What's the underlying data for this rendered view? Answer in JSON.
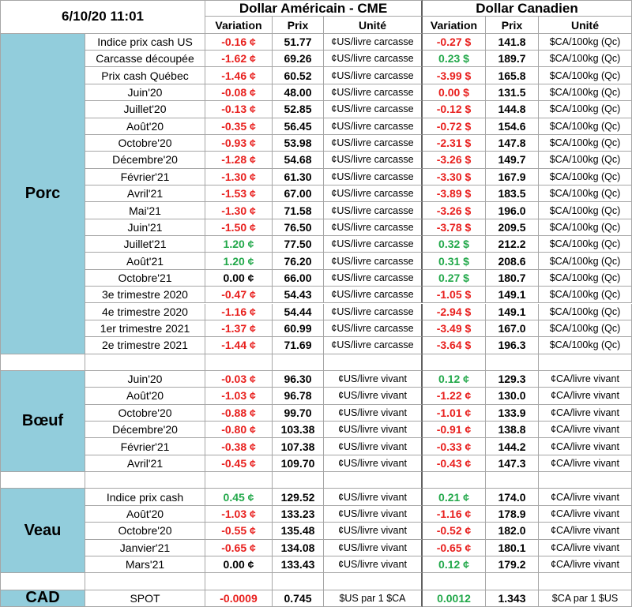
{
  "header": {
    "timestamp": "6/10/20 11:01",
    "us_title": "Dollar Américain - CME",
    "ca_title": "Dollar Canadien",
    "us_columns": [
      "Variation",
      "Prix",
      "Unité"
    ],
    "ca_columns": [
      "Variation",
      "Prix",
      "Unité"
    ]
  },
  "sections": [
    {
      "name": "Porc",
      "rows": [
        {
          "label": "Indice prix cash US",
          "us": {
            "variation": {
              "text": "-0.16 ¢",
              "color": "#e8201e"
            },
            "prix": "51.77",
            "unite": "¢US/livre carcasse"
          },
          "ca": {
            "variation": {
              "text": "-0.27 $",
              "color": "#e8201e"
            },
            "prix": "141.8",
            "unite": "$CA/100kg (Qc)"
          }
        },
        {
          "label": "Carcasse découpée",
          "us": {
            "variation": {
              "text": "-1.62 ¢",
              "color": "#e8201e"
            },
            "prix": "69.26",
            "unite": "¢US/livre carcasse"
          },
          "ca": {
            "variation": {
              "text": "0.23 $",
              "color": "#22a84a"
            },
            "prix": "189.7",
            "unite": "$CA/100kg (Qc)"
          }
        },
        {
          "label": "Prix cash Québec",
          "us": {
            "variation": {
              "text": "-1.46 ¢",
              "color": "#e8201e"
            },
            "prix": "60.52",
            "unite": "¢US/livre carcasse"
          },
          "ca": {
            "variation": {
              "text": "-3.99 $",
              "color": "#e8201e"
            },
            "prix": "165.8",
            "unite": "$CA/100kg (Qc)"
          }
        },
        {
          "label": "Juin'20",
          "us": {
            "variation": {
              "text": "-0.08 ¢",
              "color": "#e8201e"
            },
            "prix": "48.00",
            "unite": "¢US/livre carcasse"
          },
          "ca": {
            "variation": {
              "text": "0.00 $",
              "color": "#e8201e"
            },
            "prix": "131.5",
            "unite": "$CA/100kg (Qc)"
          }
        },
        {
          "label": "Juillet'20",
          "us": {
            "variation": {
              "text": "-0.13 ¢",
              "color": "#e8201e"
            },
            "prix": "52.85",
            "unite": "¢US/livre carcasse"
          },
          "ca": {
            "variation": {
              "text": "-0.12 $",
              "color": "#e8201e"
            },
            "prix": "144.8",
            "unite": "$CA/100kg (Qc)"
          }
        },
        {
          "label": "Août'20",
          "us": {
            "variation": {
              "text": "-0.35 ¢",
              "color": "#e8201e"
            },
            "prix": "56.45",
            "unite": "¢US/livre carcasse"
          },
          "ca": {
            "variation": {
              "text": "-0.72 $",
              "color": "#e8201e"
            },
            "prix": "154.6",
            "unite": "$CA/100kg (Qc)"
          }
        },
        {
          "label": "Octobre'20",
          "us": {
            "variation": {
              "text": "-0.93 ¢",
              "color": "#e8201e"
            },
            "prix": "53.98",
            "unite": "¢US/livre carcasse"
          },
          "ca": {
            "variation": {
              "text": "-2.31 $",
              "color": "#e8201e"
            },
            "prix": "147.8",
            "unite": "$CA/100kg (Qc)"
          }
        },
        {
          "label": "Décembre'20",
          "us": {
            "variation": {
              "text": "-1.28 ¢",
              "color": "#e8201e"
            },
            "prix": "54.68",
            "unite": "¢US/livre carcasse"
          },
          "ca": {
            "variation": {
              "text": "-3.26 $",
              "color": "#e8201e"
            },
            "prix": "149.7",
            "unite": "$CA/100kg (Qc)"
          }
        },
        {
          "label": "Février'21",
          "us": {
            "variation": {
              "text": "-1.30 ¢",
              "color": "#e8201e"
            },
            "prix": "61.30",
            "unite": "¢US/livre carcasse"
          },
          "ca": {
            "variation": {
              "text": "-3.30 $",
              "color": "#e8201e"
            },
            "prix": "167.9",
            "unite": "$CA/100kg (Qc)"
          }
        },
        {
          "label": "Avril'21",
          "us": {
            "variation": {
              "text": "-1.53 ¢",
              "color": "#e8201e"
            },
            "prix": "67.00",
            "unite": "¢US/livre carcasse"
          },
          "ca": {
            "variation": {
              "text": "-3.89 $",
              "color": "#e8201e"
            },
            "prix": "183.5",
            "unite": "$CA/100kg (Qc)"
          }
        },
        {
          "label": "Mai'21",
          "us": {
            "variation": {
              "text": "-1.30 ¢",
              "color": "#e8201e"
            },
            "prix": "71.58",
            "unite": "¢US/livre carcasse"
          },
          "ca": {
            "variation": {
              "text": "-3.26 $",
              "color": "#e8201e"
            },
            "prix": "196.0",
            "unite": "$CA/100kg (Qc)"
          }
        },
        {
          "label": "Juin'21",
          "us": {
            "variation": {
              "text": "-1.50 ¢",
              "color": "#e8201e"
            },
            "prix": "76.50",
            "unite": "¢US/livre carcasse"
          },
          "ca": {
            "variation": {
              "text": "-3.78 $",
              "color": "#e8201e"
            },
            "prix": "209.5",
            "unite": "$CA/100kg (Qc)"
          }
        },
        {
          "label": "Juillet'21",
          "us": {
            "variation": {
              "text": "1.20 ¢",
              "color": "#22a84a"
            },
            "prix": "77.50",
            "unite": "¢US/livre carcasse"
          },
          "ca": {
            "variation": {
              "text": "0.32 $",
              "color": "#22a84a"
            },
            "prix": "212.2",
            "unite": "$CA/100kg (Qc)"
          }
        },
        {
          "label": "Août'21",
          "us": {
            "variation": {
              "text": "1.20 ¢",
              "color": "#22a84a"
            },
            "prix": "76.20",
            "unite": "¢US/livre carcasse"
          },
          "ca": {
            "variation": {
              "text": "0.31 $",
              "color": "#22a84a"
            },
            "prix": "208.6",
            "unite": "$CA/100kg (Qc)"
          }
        },
        {
          "label": "Octobre'21",
          "us": {
            "variation": {
              "text": "0.00 ¢",
              "color": "#000000"
            },
            "prix": "66.00",
            "unite": "¢US/livre carcasse"
          },
          "ca": {
            "variation": {
              "text": "0.27 $",
              "color": "#22a84a"
            },
            "prix": "180.7",
            "unite": "$CA/100kg (Qc)"
          }
        },
        {
          "label": "3e trimestre 2020",
          "us": {
            "variation": {
              "text": "-0.47 ¢",
              "color": "#e8201e"
            },
            "prix": "54.43",
            "unite": "¢US/livre carcasse"
          },
          "ca": {
            "variation": {
              "text": "-1.05 $",
              "color": "#e8201e"
            },
            "prix": "149.1",
            "unite": "$CA/100kg (Qc)"
          }
        },
        {
          "label": "4e trimestre 2020",
          "us": {
            "variation": {
              "text": "-1.16 ¢",
              "color": "#e8201e"
            },
            "prix": "54.44",
            "unite": "¢US/livre carcasse"
          },
          "ca": {
            "variation": {
              "text": "-2.94 $",
              "color": "#e8201e"
            },
            "prix": "149.1",
            "unite": "$CA/100kg (Qc)"
          }
        },
        {
          "label": "1er trimestre 2021",
          "us": {
            "variation": {
              "text": "-1.37 ¢",
              "color": "#e8201e"
            },
            "prix": "60.99",
            "unite": "¢US/livre carcasse"
          },
          "ca": {
            "variation": {
              "text": "-3.49 $",
              "color": "#e8201e"
            },
            "prix": "167.0",
            "unite": "$CA/100kg (Qc)"
          }
        },
        {
          "label": "2e trimestre 2021",
          "us": {
            "variation": {
              "text": "-1.44 ¢",
              "color": "#e8201e"
            },
            "prix": "71.69",
            "unite": "¢US/livre carcasse"
          },
          "ca": {
            "variation": {
              "text": "-3.64 $",
              "color": "#e8201e"
            },
            "prix": "196.3",
            "unite": "$CA/100kg (Qc)"
          }
        }
      ]
    },
    {
      "name": "Bœuf",
      "rows": [
        {
          "label": "Juin'20",
          "us": {
            "variation": {
              "text": "-0.03 ¢",
              "color": "#e8201e"
            },
            "prix": "96.30",
            "unite": "¢US/livre vivant"
          },
          "ca": {
            "variation": {
              "text": "0.12 ¢",
              "color": "#22a84a"
            },
            "prix": "129.3",
            "unite": "¢CA/livre vivant"
          }
        },
        {
          "label": "Août'20",
          "us": {
            "variation": {
              "text": "-1.03 ¢",
              "color": "#e8201e"
            },
            "prix": "96.78",
            "unite": "¢US/livre vivant"
          },
          "ca": {
            "variation": {
              "text": "-1.22 ¢",
              "color": "#e8201e"
            },
            "prix": "130.0",
            "unite": "¢CA/livre vivant"
          }
        },
        {
          "label": "Octobre'20",
          "us": {
            "variation": {
              "text": "-0.88 ¢",
              "color": "#e8201e"
            },
            "prix": "99.70",
            "unite": "¢US/livre vivant"
          },
          "ca": {
            "variation": {
              "text": "-1.01 ¢",
              "color": "#e8201e"
            },
            "prix": "133.9",
            "unite": "¢CA/livre vivant"
          }
        },
        {
          "label": "Décembre'20",
          "us": {
            "variation": {
              "text": "-0.80 ¢",
              "color": "#e8201e"
            },
            "prix": "103.38",
            "unite": "¢US/livre vivant"
          },
          "ca": {
            "variation": {
              "text": "-0.91 ¢",
              "color": "#e8201e"
            },
            "prix": "138.8",
            "unite": "¢CA/livre vivant"
          }
        },
        {
          "label": "Février'21",
          "us": {
            "variation": {
              "text": "-0.38 ¢",
              "color": "#e8201e"
            },
            "prix": "107.38",
            "unite": "¢US/livre vivant"
          },
          "ca": {
            "variation": {
              "text": "-0.33 ¢",
              "color": "#e8201e"
            },
            "prix": "144.2",
            "unite": "¢CA/livre vivant"
          }
        },
        {
          "label": "Avril'21",
          "us": {
            "variation": {
              "text": "-0.45 ¢",
              "color": "#e8201e"
            },
            "prix": "109.70",
            "unite": "¢US/livre vivant"
          },
          "ca": {
            "variation": {
              "text": "-0.43 ¢",
              "color": "#e8201e"
            },
            "prix": "147.3",
            "unite": "¢CA/livre vivant"
          }
        }
      ]
    },
    {
      "name": "Veau",
      "rows": [
        {
          "label": "Indice prix cash",
          "us": {
            "variation": {
              "text": "0.45 ¢",
              "color": "#22a84a"
            },
            "prix": "129.52",
            "unite": "¢US/livre vivant"
          },
          "ca": {
            "variation": {
              "text": "0.21 ¢",
              "color": "#22a84a"
            },
            "prix": "174.0",
            "unite": "¢CA/livre vivant"
          }
        },
        {
          "label": "Août'20",
          "us": {
            "variation": {
              "text": "-1.03 ¢",
              "color": "#e8201e"
            },
            "prix": "133.23",
            "unite": "¢US/livre vivant"
          },
          "ca": {
            "variation": {
              "text": "-1.16 ¢",
              "color": "#e8201e"
            },
            "prix": "178.9",
            "unite": "¢CA/livre vivant"
          }
        },
        {
          "label": "Octobre'20",
          "us": {
            "variation": {
              "text": "-0.55 ¢",
              "color": "#e8201e"
            },
            "prix": "135.48",
            "unite": "¢US/livre vivant"
          },
          "ca": {
            "variation": {
              "text": "-0.52 ¢",
              "color": "#e8201e"
            },
            "prix": "182.0",
            "unite": "¢CA/livre vivant"
          }
        },
        {
          "label": "Janvier'21",
          "us": {
            "variation": {
              "text": "-0.65 ¢",
              "color": "#e8201e"
            },
            "prix": "134.08",
            "unite": "¢US/livre vivant"
          },
          "ca": {
            "variation": {
              "text": "-0.65 ¢",
              "color": "#e8201e"
            },
            "prix": "180.1",
            "unite": "¢CA/livre vivant"
          }
        },
        {
          "label": "Mars'21",
          "us": {
            "variation": {
              "text": "0.00 ¢",
              "color": "#000000"
            },
            "prix": "133.43",
            "unite": "¢US/livre vivant"
          },
          "ca": {
            "variation": {
              "text": "0.12 ¢",
              "color": "#22a84a"
            },
            "prix": "179.2",
            "unite": "¢CA/livre vivant"
          }
        }
      ]
    },
    {
      "name": "CAD",
      "rows": [
        {
          "label": "SPOT",
          "us": {
            "variation": {
              "text": "-0.0009",
              "color": "#e8201e"
            },
            "prix": "0.745",
            "unite": "$US par 1 $CA"
          },
          "ca": {
            "variation": {
              "text": "0.0012",
              "color": "#22a84a"
            },
            "prix": "1.343",
            "unite": "$CA par 1 $US"
          }
        }
      ]
    }
  ]
}
